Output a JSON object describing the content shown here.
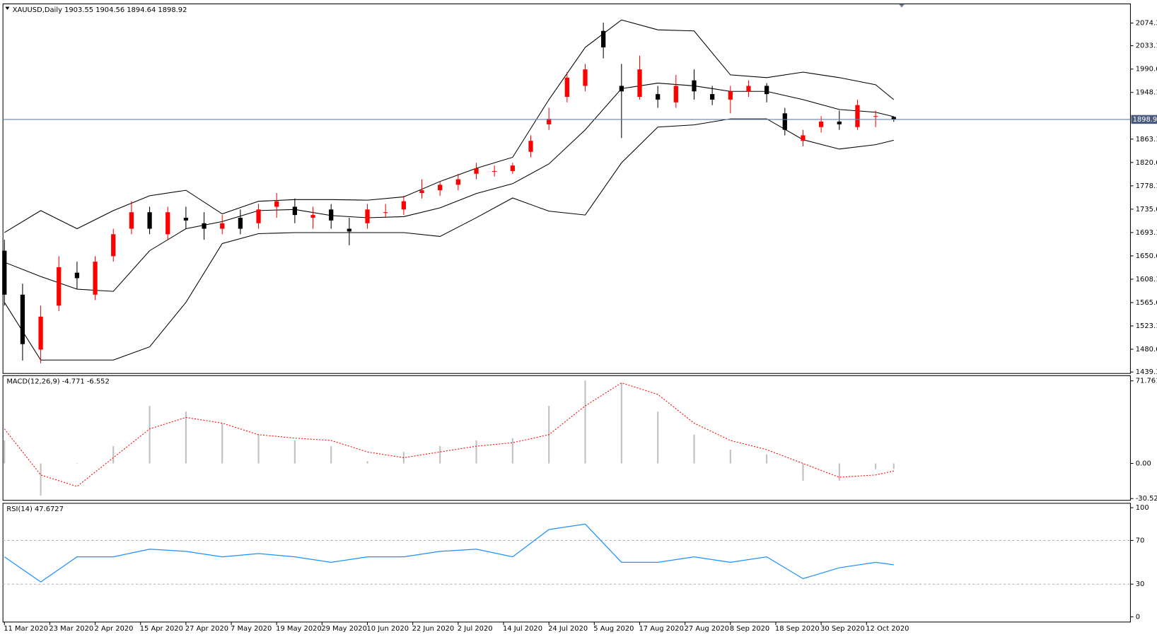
{
  "chart_data": [
    {
      "type": "candlestick",
      "title": "XAUUSD,Daily  1903.55 1904.56 1894.64 1898.92",
      "x": [
        0,
        4,
        8,
        12,
        16,
        20,
        24,
        28,
        32,
        36,
        40,
        44,
        48,
        52,
        56,
        60,
        64,
        68,
        72,
        76,
        80,
        84,
        88,
        92,
        96,
        100,
        104,
        108,
        112,
        116,
        120,
        124,
        128,
        132,
        136,
        140,
        144,
        148,
        152,
        156,
        160,
        164,
        168,
        172,
        176,
        180,
        184,
        188,
        192,
        196
      ],
      "open": [
        1660,
        1580,
        1480,
        1560,
        1620,
        1580,
        1650,
        1700,
        1730,
        1690,
        1720,
        1710,
        1700,
        1720,
        1710,
        1740,
        1740,
        1720,
        1735,
        1700,
        1710,
        1730,
        1735,
        1765,
        1770,
        1780,
        1800,
        1805,
        1805,
        1840,
        1890,
        1940,
        1960,
        2060,
        1960,
        1940,
        1945,
        1930,
        1970,
        1945,
        1935,
        1950,
        1960,
        1910,
        1860,
        1885,
        1895,
        1885,
        1905,
        1903.55
      ],
      "high": [
        1680,
        1600,
        1560,
        1650,
        1640,
        1650,
        1700,
        1750,
        1740,
        1740,
        1740,
        1730,
        1725,
        1735,
        1745,
        1765,
        1755,
        1740,
        1745,
        1720,
        1745,
        1745,
        1760,
        1790,
        1785,
        1800,
        1820,
        1815,
        1820,
        1870,
        1920,
        1985,
        2000,
        2075,
        2000,
        2015,
        1960,
        1980,
        1990,
        1960,
        1960,
        1970,
        1965,
        1920,
        1880,
        1905,
        1915,
        1935,
        1915,
        1904.56
      ],
      "low": [
        1560,
        1460,
        1455,
        1550,
        1590,
        1570,
        1640,
        1690,
        1690,
        1680,
        1700,
        1680,
        1690,
        1690,
        1700,
        1720,
        1710,
        1700,
        1700,
        1670,
        1700,
        1720,
        1725,
        1755,
        1760,
        1770,
        1790,
        1795,
        1800,
        1830,
        1880,
        1930,
        1950,
        2010,
        1865,
        1935,
        1920,
        1920,
        1935,
        1925,
        1910,
        1940,
        1930,
        1870,
        1850,
        1875,
        1880,
        1880,
        1885,
        1894.64
      ],
      "close": [
        1580,
        1490,
        1540,
        1630,
        1610,
        1640,
        1690,
        1730,
        1700,
        1730,
        1715,
        1700,
        1710,
        1700,
        1735,
        1750,
        1725,
        1725,
        1715,
        1695,
        1735,
        1730,
        1750,
        1770,
        1780,
        1790,
        1810,
        1805,
        1815,
        1860,
        1900,
        1975,
        1990,
        2030,
        1950,
        1990,
        1935,
        1960,
        1950,
        1935,
        1950,
        1960,
        1945,
        1880,
        1870,
        1895,
        1890,
        1925,
        1905,
        1898.92
      ],
      "up_color": "#ff0000",
      "down_color": "#000000",
      "overlay_x": [
        0,
        8,
        16,
        24,
        32,
        40,
        48,
        56,
        64,
        72,
        80,
        88,
        96,
        104,
        112,
        120,
        128,
        136,
        144,
        152,
        160,
        168,
        176,
        184,
        192,
        196
      ],
      "overlays": [
        {
          "color": "#000000",
          "values": [
            1693,
            1733,
            1700,
            1733,
            1760,
            1770,
            1727,
            1750,
            1753,
            1753,
            1752,
            1758,
            1786,
            1810,
            1830,
            1935,
            2030,
            2080,
            2062,
            2060,
            1980,
            1975,
            1985,
            1975,
            1962,
            1935
          ]
        },
        {
          "color": "#000000",
          "values": [
            1639,
            1613,
            1590,
            1586,
            1660,
            1700,
            1713,
            1733,
            1735,
            1724,
            1720,
            1722,
            1738,
            1764,
            1782,
            1818,
            1880,
            1955,
            1965,
            1960,
            1950,
            1950,
            1935,
            1917,
            1912,
            1904
          ]
        },
        {
          "color": "#000000",
          "values": [
            1566,
            1461,
            1461,
            1461,
            1485,
            1566,
            1673,
            1691,
            1693,
            1693,
            1693,
            1693,
            1686,
            1720,
            1756,
            1732,
            1725,
            1820,
            1885,
            1889,
            1900,
            1900,
            1862,
            1845,
            1853,
            1861
          ]
        }
      ],
      "price_line": {
        "value": 1898.92,
        "label": "1898.9"
      },
      "xlim": [
        0,
        248
      ],
      "ylim": [
        1436.6,
        2109.2
      ],
      "yticks": [
        1439.3,
        1480.6,
        1523.1,
        1565.6,
        1608.1,
        1650.6,
        1693.1,
        1735.6,
        1778.1,
        1820.6,
        1863.1,
        1948.1,
        1990.6,
        2033.1,
        2074.3
      ]
    },
    {
      "type": "combo",
      "title": "MACD(12,26,9) -4.771 -6.552",
      "x": [
        0,
        8,
        16,
        24,
        32,
        40,
        48,
        56,
        64,
        72,
        80,
        88,
        96,
        104,
        112,
        120,
        128,
        136,
        144,
        152,
        160,
        168,
        176,
        184,
        192,
        196
      ],
      "histogram": {
        "color": "#c0c0c0",
        "values": [
          20,
          -28,
          0,
          15,
          50,
          45,
          35,
          25,
          20,
          15,
          2,
          10,
          15,
          20,
          22,
          50,
          72,
          70,
          45,
          25,
          12,
          8,
          -15,
          -15,
          -5,
          -4.771
        ]
      },
      "signal": {
        "color": "#ff0000",
        "values": [
          30,
          -10,
          -20,
          5,
          30,
          40,
          35,
          25,
          22,
          20,
          10,
          5,
          10,
          15,
          18,
          25,
          50,
          70,
          60,
          35,
          20,
          12,
          0,
          -12,
          -10,
          -6.552
        ]
      },
      "xlim": [
        0,
        248
      ],
      "ylim": [
        -32.04,
        76.25
      ],
      "yticks": [
        -30.52,
        {
          "value": 0,
          "label": "0.00"
        },
        71.761
      ]
    },
    {
      "type": "line",
      "title": "RSI(14) 47.6727",
      "x": [
        0,
        8,
        16,
        24,
        32,
        40,
        48,
        56,
        64,
        72,
        80,
        88,
        96,
        104,
        112,
        120,
        128,
        136,
        144,
        152,
        160,
        168,
        176,
        184,
        192,
        196
      ],
      "series": [
        {
          "color": "#1e90ff",
          "values": [
            55,
            32,
            55,
            55,
            62,
            60,
            55,
            58,
            55,
            50,
            55,
            55,
            60,
            62,
            55,
            80,
            85,
            50,
            50,
            55,
            50,
            55,
            35,
            45,
            50,
            47.6727
          ]
        }
      ],
      "levels": [
        30,
        70
      ],
      "xlim": [
        0,
        248
      ],
      "ylim": [
        -4.73,
        104.05
      ],
      "yticks": [
        0,
        30,
        70,
        100
      ],
      "xticks": [
        {
          "value": 0,
          "label": "11 Mar 2020"
        },
        {
          "value": 10,
          "label": "23 Mar 2020"
        },
        {
          "value": 20,
          "label": "2 Apr 2020"
        },
        {
          "value": 30,
          "label": "15 Apr 2020"
        },
        {
          "value": 40,
          "label": "27 Apr 2020"
        },
        {
          "value": 50,
          "label": "7 May 2020"
        },
        {
          "value": 60,
          "label": "19 May 2020"
        },
        {
          "value": 70,
          "label": "29 May 2020"
        },
        {
          "value": 80,
          "label": "10 Jun 2020"
        },
        {
          "value": 90,
          "label": "22 Jun 2020"
        },
        {
          "value": 100,
          "label": "2 Jul 2020"
        },
        {
          "value": 110,
          "label": "14 Jul 2020"
        },
        {
          "value": 120,
          "label": "24 Jul 2020"
        },
        {
          "value": 130,
          "label": "5 Aug 2020"
        },
        {
          "value": 140,
          "label": "17 Aug 2020"
        },
        {
          "value": 150,
          "label": "27 Aug 2020"
        },
        {
          "value": 160,
          "label": "8 Sep 2020"
        },
        {
          "value": 170,
          "label": "18 Sep 2020"
        },
        {
          "value": 180,
          "label": "30 Sep 2020"
        },
        {
          "value": 190,
          "label": "12 Oct 2020"
        }
      ]
    }
  ]
}
